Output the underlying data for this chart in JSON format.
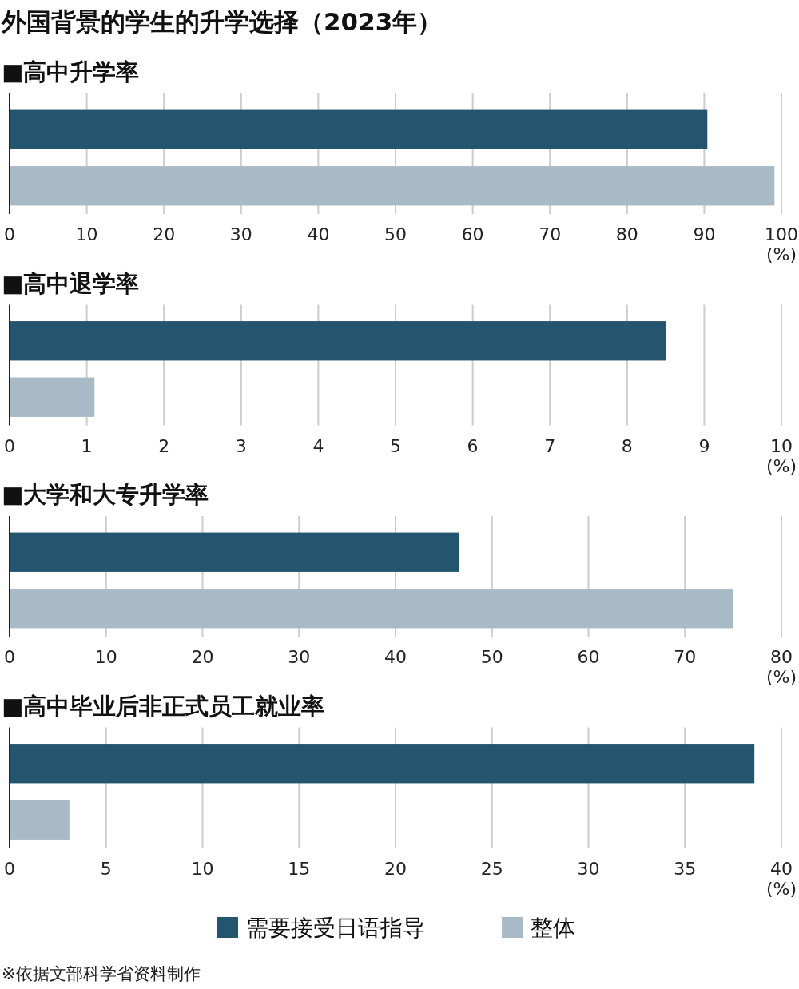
{
  "chart_data": [
    {
      "type": "bar",
      "orientation": "horizontal",
      "title": "外国背景的学生的升学选择（2023年）",
      "subtitle": "■高中升学率",
      "xlabel": "(%)",
      "categories": [
        null
      ],
      "series": [
        {
          "color": "#24556f",
          "values": [
            90.4
          ]
        },
        {
          "color": "#a8bac6",
          "values": [
            99.1
          ]
        }
      ],
      "xlim": [
        0,
        100
      ],
      "xticks": [
        0,
        10,
        20,
        30,
        40,
        50,
        60,
        70,
        80,
        90,
        100
      ],
      "grid": "x",
      "legend": false
    },
    {
      "type": "bar",
      "orientation": "horizontal",
      "subtitle": "■高中退学率",
      "xlabel": "(%)",
      "categories": [
        null
      ],
      "series": [
        {
          "color": "#24556f",
          "values": [
            8.5
          ]
        },
        {
          "color": "#a8bac6",
          "values": [
            1.1
          ]
        }
      ],
      "xlim": [
        0,
        10
      ],
      "xticks": [
        0,
        1,
        2,
        3,
        4,
        5,
        6,
        7,
        8,
        9,
        10
      ],
      "grid": "x",
      "legend": false
    },
    {
      "type": "bar",
      "orientation": "horizontal",
      "subtitle": "■大学和大专升学率",
      "xlabel": "(%)",
      "categories": [
        null
      ],
      "series": [
        {
          "color": "#24556f",
          "values": [
            46.6
          ]
        },
        {
          "color": "#a8bac6",
          "values": [
            75.0
          ]
        }
      ],
      "xlim": [
        0,
        80
      ],
      "xticks": [
        0,
        10,
        20,
        30,
        40,
        50,
        60,
        70,
        80
      ],
      "grid": "x",
      "legend": false
    },
    {
      "type": "bar",
      "orientation": "horizontal",
      "subtitle": "■高中毕业后非正式员工就业率",
      "xlabel": "(%)",
      "categories": [
        null
      ],
      "series": [
        {
          "name": "需要接受日语指导",
          "color": "#24556f",
          "values": [
            38.6
          ]
        },
        {
          "name": "整体",
          "color": "#a8bac6",
          "values": [
            3.1
          ]
        }
      ],
      "xlim": [
        0,
        40
      ],
      "xticks": [
        0,
        5,
        10,
        15,
        20,
        25,
        30,
        35,
        40
      ],
      "grid": "x",
      "legend": "bottom",
      "annotations": [
        "※依据文部科学省资料制作"
      ]
    }
  ]
}
